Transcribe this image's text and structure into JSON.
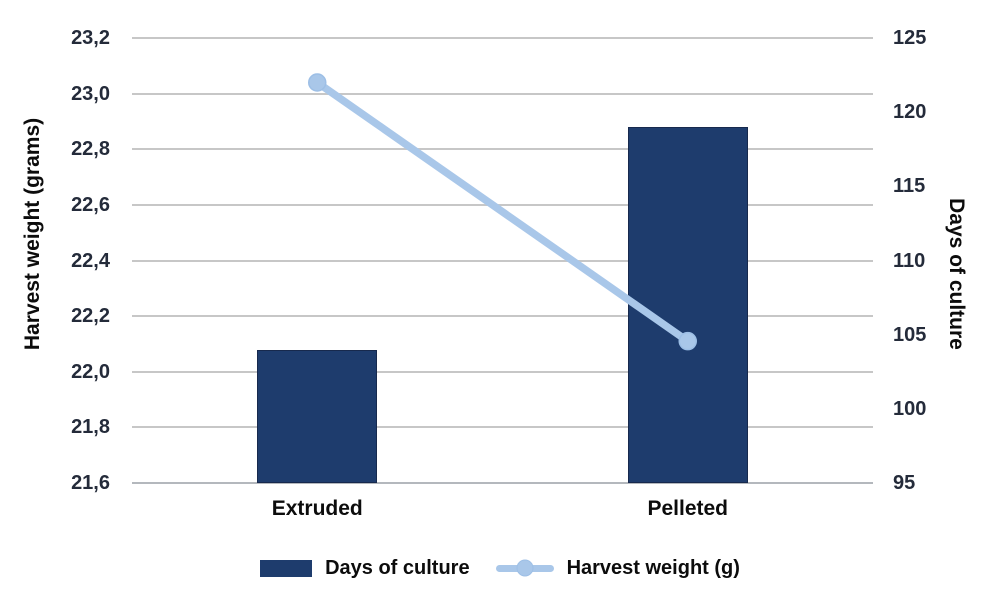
{
  "chart_data": {
    "type": "combo-bar-line",
    "categories": [
      "Extruded",
      "Pelleted"
    ],
    "series": [
      {
        "name": "Days of culture",
        "type": "bar",
        "axis": "right",
        "values": [
          104,
          119
        ]
      },
      {
        "name": "Harvest weight (g)",
        "type": "line",
        "axis": "left",
        "values": [
          23.04,
          22.11
        ]
      }
    ],
    "axes": {
      "left": {
        "title": "Harvest weight (grams)",
        "min": 21.6,
        "max": 23.2,
        "step": 0.2,
        "decimal_separator": ",",
        "tick_labels_top_to_bottom": [
          "23,2",
          "23,0",
          "22,8",
          "22,6",
          "22,4",
          "22,2",
          "22,0",
          "21,8",
          "21,6"
        ]
      },
      "right": {
        "title": "Days of culture",
        "min": 95,
        "max": 125,
        "step": 5,
        "tick_labels_top_to_bottom": [
          "125",
          "120",
          "115",
          "110",
          "105",
          "100",
          "95"
        ]
      }
    },
    "grid": true,
    "legend_position": "bottom"
  },
  "legend": {
    "items": [
      {
        "label": "Days of culture",
        "swatch": "bar"
      },
      {
        "label": "Harvest weight (g)",
        "swatch": "line"
      }
    ]
  },
  "colors": {
    "bar": "#1e3c6d",
    "bar_border": "#17294d",
    "line": "#a9c7e9",
    "marker": "#a9c7e9",
    "marker_border": "#9dbfe6",
    "gridline": "#c7c7c7",
    "baseline": "#b4b8bd",
    "tick_text": "#242b3a",
    "title_text": "#0c0c0c"
  }
}
